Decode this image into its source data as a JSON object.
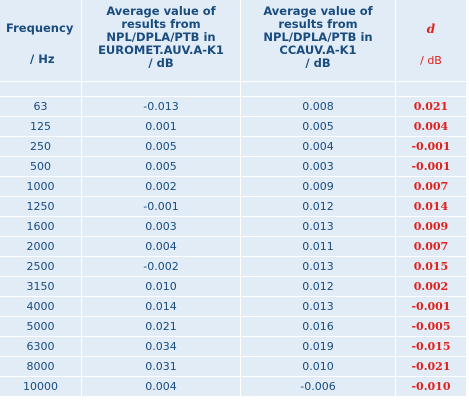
{
  "headers": {
    "frequency": "Frequency",
    "frequency_unit": "/ Hz",
    "col_euromet_lines": [
      "Average value of",
      "results from",
      "NPL/DPLA/PTB in",
      "EUROMET.AUV.A-K1"
    ],
    "col_euromet_unit": "/ dB",
    "col_ccauv_lines": [
      "Average value of",
      "results from",
      "NPL/DPLA/PTB in",
      "CCAUV.A-K1"
    ],
    "col_ccauv_unit": "/ dB",
    "d_symbol": "d",
    "d_unit": "/ dB"
  },
  "colors": {
    "cell_bg": "#e1ecf7",
    "text": "#1a4c7e",
    "d_text": "#e0201b"
  },
  "rows": [
    {
      "frequency": "63",
      "euromet": "-0.013",
      "ccauv": "0.008",
      "d": "0.021"
    },
    {
      "frequency": "125",
      "euromet": "0.001",
      "ccauv": "0.005",
      "d": "0.004"
    },
    {
      "frequency": "250",
      "euromet": "0.005",
      "ccauv": "0.004",
      "d": "-0.001"
    },
    {
      "frequency": "500",
      "euromet": "0.005",
      "ccauv": "0.003",
      "d": "-0.001"
    },
    {
      "frequency": "1000",
      "euromet": "0.002",
      "ccauv": "0.009",
      "d": "0.007"
    },
    {
      "frequency": "1250",
      "euromet": "-0.001",
      "ccauv": "0.012",
      "d": "0.014"
    },
    {
      "frequency": "1600",
      "euromet": "0.003",
      "ccauv": "0.013",
      "d": "0.009"
    },
    {
      "frequency": "2000",
      "euromet": "0.004",
      "ccauv": "0.011",
      "d": "0.007"
    },
    {
      "frequency": "2500",
      "euromet": "-0.002",
      "ccauv": "0.013",
      "d": "0.015"
    },
    {
      "frequency": "3150",
      "euromet": "0.010",
      "ccauv": "0.012",
      "d": "0.002"
    },
    {
      "frequency": "4000",
      "euromet": "0.014",
      "ccauv": "0.013",
      "d": "-0.001"
    },
    {
      "frequency": "5000",
      "euromet": "0.021",
      "ccauv": "0.016",
      "d": "-0.005"
    },
    {
      "frequency": "6300",
      "euromet": "0.034",
      "ccauv": "0.019",
      "d": "-0.015"
    },
    {
      "frequency": "8000",
      "euromet": "0.031",
      "ccauv": "0.010",
      "d": "-0.021"
    },
    {
      "frequency": "10000",
      "euromet": "0.004",
      "ccauv": "-0.006",
      "d": "-0.010"
    }
  ]
}
